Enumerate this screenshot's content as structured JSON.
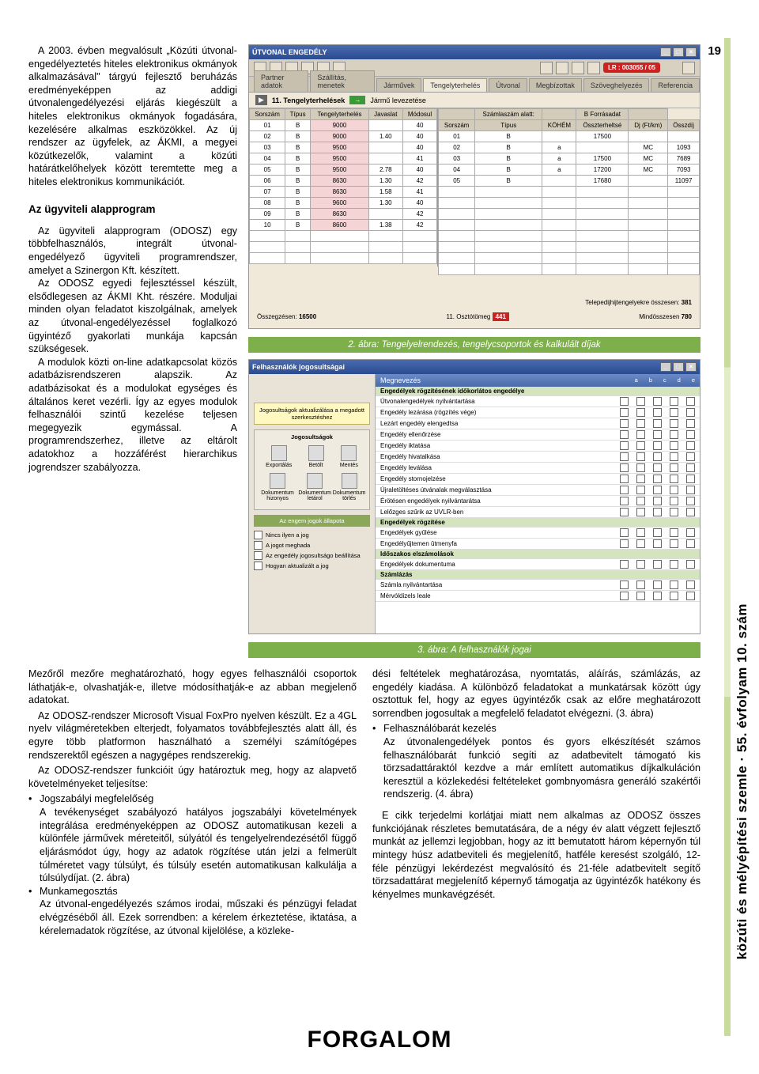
{
  "page_number": "19",
  "side_label": "közúti és mélyépítési szemle · 55. évfolyam 10. szám",
  "footer_label": "FORGALOM",
  "left": {
    "p1": "A 2003. évben megvalósult „Közúti útvonal-engedélyeztetés hiteles elektronikus okmányok alkalmazásával\" tárgyú fejlesztő beruházás eredményeképpen az addigi útvonalengedélyezési eljárás kiegészült a hiteles elektronikus okmányok fogadására, kezelésére alkalmas eszközökkel. Az új rendszer az ügyfelek, az ÁKMI, a megyei közútkezelők, valamint a közúti határátkelőhelyek között teremtette meg a hiteles elektronikus kommunikációt.",
    "h1": "Az ügyviteli alapprogram",
    "p2": "Az ügyviteli alapprogram (ODOSZ) egy többfelhasználós, integrált útvonal-engedélyező ügyviteli programrendszer, amelyet a Szinergon Kft. készített.",
    "p3": "Az ODOSZ egyedi fejlesztéssel készült, elsődlegesen az ÁKMI Kht. részére. Moduljai minden olyan feladatot kiszolgálnak, amelyek az útvonal-engedélyezéssel foglalkozó ügyintéző gyakorlati munkája kapcsán szükségesek.",
    "p4": "A modulok közti on-line adatkapcsolat közös adatbázisrendszeren alapszik. Az adatbázisokat és a modulokat egységes és általános keret vezérli. Így az egyes modulok felhasználói szintű kezelése teljesen megegyezik egymással. A programrendszerhez, illetve az eltárolt adatokhoz a hozzáférést hierarchikus jogrendszer szabályozza."
  },
  "fig1": {
    "title": "ÚTVONAL ENGEDÉLY",
    "red_label": "LR : 003055 / 05",
    "tabs": [
      "Partner adatok",
      "Szállítás, menetek",
      "Járművek",
      "Tengelyterhelés",
      "Útvonal",
      "Megbízottak",
      "Szöveghelyezés",
      "Referencia"
    ],
    "sub_label": "11. Tengelyterhelések",
    "sub_btn": "Jármű levezetése",
    "headers_left": [
      "Sorszám",
      "Típus",
      "Tengelyterhelés",
      "Javaslat",
      "Módosul"
    ],
    "rows_left": [
      [
        "01",
        "B",
        "9000",
        "",
        "40"
      ],
      [
        "02",
        "B",
        "9000",
        "1.40",
        "40"
      ],
      [
        "03",
        "B",
        "9500",
        "",
        "40"
      ],
      [
        "04",
        "B",
        "9500",
        "",
        "41"
      ],
      [
        "05",
        "B",
        "9500",
        "2.78",
        "40"
      ],
      [
        "06",
        "B",
        "8630",
        "1.30",
        "42"
      ],
      [
        "07",
        "B",
        "8630",
        "1.58",
        "41"
      ],
      [
        "08",
        "B",
        "9600",
        "1.30",
        "40"
      ],
      [
        "09",
        "B",
        "8630",
        "",
        "42"
      ],
      [
        "10",
        "B",
        "8600",
        "1.38",
        "42"
      ]
    ],
    "headers_right": [
      "",
      "Számlaszám alatt:",
      "",
      "B Forrásadat",
      ""
    ],
    "rows_right": [
      [
        "Sorszám",
        "Típus",
        "KÖHÉM",
        "Összterheltsé",
        "Dj (Ft/km)",
        "Összdíj"
      ],
      [
        "01",
        "B",
        "",
        "17500",
        "",
        ""
      ],
      [
        "02",
        "B",
        "a",
        "",
        "MC",
        "1093"
      ],
      [
        "03",
        "B",
        "a",
        "17500",
        "MC",
        "7689"
      ],
      [
        "04",
        "B",
        "a",
        "17200",
        "MC",
        "7093"
      ],
      [
        "05",
        "B",
        "",
        "17680",
        "",
        "11097"
      ]
    ],
    "footer_left_label": "Telepedijhijtengelyekre összesen:",
    "footer_left_val": "381",
    "footer_mid_label": "Összegzésen:",
    "footer_mid_val": "16500",
    "footer_right_label": "11. Osztótömeg",
    "footer_right_val": "441",
    "footer_far_right_label": "Mindösszesen",
    "footer_far_right_val": "780"
  },
  "caption1": "2. ábra: Tengelyelrendezés, tengelycsoportok és kalkulált díjak",
  "fig2": {
    "title": "Felhasználók jogosultságai",
    "left_box1": "Jogosultságok aktualizálása a megadott szerkesztéshez",
    "icon_labels": [
      "Exportálás",
      "Betölt",
      "Mentés"
    ],
    "icon_labels2": [
      "Dokumentum hizonyos",
      "Dokumentum letárol",
      "Dokumentum törlés"
    ],
    "btn_label": "Az engem jogok állapota",
    "bottom_items": [
      "Nincs ilyen a jog",
      "A jogot meghada",
      "Az engedély jogosultságo beállítása",
      "Hogyan aktualizált a jog"
    ],
    "right_header": "Megnevezés",
    "right_cols": [
      "a",
      "b",
      "c",
      "d",
      "e"
    ],
    "sections": [
      {
        "title": "Engedélyek rögzítésének időkorlátos engedélye",
        "rows": [
          "Útvonalengedélyek nyilvántartása",
          "Engedély lezárása (rögzítés vége)",
          "Lezárt engedély elengedtsa",
          "Engedély ellenőrzése",
          "Engedély iktatása",
          "Engedély hivatalkása",
          "Engedély leválása",
          "Engedély stornojelzése",
          "Újraletöltéses útvánalak megválasztása",
          "Érötésen engedélyek nyilvántarátsa",
          "Lelőzges szűrik az UVLR-ben"
        ]
      },
      {
        "title": "Engedélyek rögzítése",
        "rows": [
          "Engedélyek gyűlése",
          "Engedélyűjtemen ûtmenyfa"
        ]
      },
      {
        "title": "Időszakos elszámolások",
        "rows": [
          "Engedélyek dokumentuma"
        ]
      },
      {
        "title": "Számlázás",
        "rows": [
          "Számla nyilvántartása",
          "Mérvóldizels leale"
        ]
      }
    ]
  },
  "caption2": "3. ábra: A felhasználók jogai",
  "bottom_left": {
    "p1": "Mezőről mezőre meghatározható, hogy egyes felhasználói csoportok láthatják-e, olvashatják-e, illetve módosíthatják-e az abban megjelenő adatokat.",
    "p2": "Az ODOSZ-rendszer Microsoft Visual FoxPro nyelven készült. Ez a 4GL nyelv világméretekben elterjedt, folyamatos továbbfejlesztés alatt áll, és egyre több platformon használható a személyi számítógépes rendszerektől egészen a nagygépes rendszerekig.",
    "p3": "Az ODOSZ-rendszer funkcióit úgy határoztuk meg, hogy az alapvető követelményeket teljesítse:",
    "b1_head": "Jogszabályi megfelelőség",
    "b1_body": "A tevékenységet szabályozó hatályos jogszabályi követelmények integrálása eredményeképpen az ODOSZ automatikusan kezeli a különféle járművek méreteitől, súlyától és tengelyelrendezésétől függő eljárásmódot úgy, hogy az adatok rögzítése után jelzi a felmerült túlméretet vagy túlsúlyt, és túlsúly esetén automatikusan kalkulálja a túlsúlydíjat. (2. ábra)",
    "b2_head": "Munkamegosztás",
    "b2_body": "Az útvonal-engedélyezés számos irodai, műszaki és pénzügyi feladat elvégzéséből áll. Ezek sorrendben: a kérelem érkeztetése, iktatása, a kérelemadatok rögzítése, az útvonal kijelölése, a közleke-"
  },
  "bottom_right": {
    "p1": "dési feltételek meghatározása, nyomtatás, aláírás, számlázás, az engedély kiadása. A különböző feladatokat a munkatársak között úgy osztottuk fel, hogy az egyes ügyintézők csak az előre meghatározott sorrendben jogosultak a megfelelő feladatot elvégezni. (3. ábra)",
    "b1_head": "Felhasználóbarát kezelés",
    "b1_body": "Az útvonalengedélyek pontos és gyors elkészítését számos felhasználóbarát funkció segíti az adatbevitelt támogató kis törzsadattáraktól kezdve a már említett automatikus díjkalkuláción keresztül a közlekedési feltételeket gombnyomásra generáló szakértői rendszerig. (4. ábra)",
    "p2": "E cikk terjedelmi korlátjai miatt nem alkalmas az ODOSZ összes funkciójának részletes bemutatására, de a négy év alatt végzett fejlesztő munkát az jellemzi legjobban, hogy az itt bemutatott három képernyőn túl mintegy húsz adatbeviteli és megjelenítő, hatféle keresést szolgáló, 12-féle pénzügyi lekérdezést megvalósító és 21-féle adatbevitelt segítő törzsadattárat megjelenítő képernyő támogatja az ügyintézők hatékony és kényelmes munkavégzését."
  }
}
